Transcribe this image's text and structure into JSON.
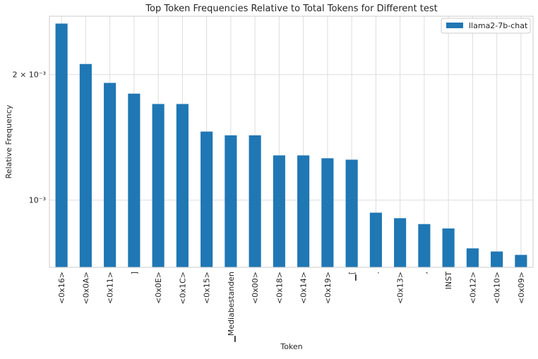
{
  "chart_data": {
    "type": "bar",
    "title": "Top Token Frequencies Relative to Total Tokens for Different test",
    "xlabel": "Token",
    "ylabel": "Relative Frequency",
    "yscale": "log",
    "ylim": [
      0.00069,
      0.00276
    ],
    "grid": true,
    "legend_position": "top-right",
    "y_ticks": [
      {
        "value": 0.002,
        "label": "2 × 10⁻³"
      },
      {
        "value": 0.001,
        "label": "10⁻³"
      }
    ],
    "categories": [
      "<0x16>",
      "<0x0A>",
      "<0x11>",
      "]",
      "<0x0E>",
      "<0x1C>",
      "<0x15>",
      "▁Mediabestanden",
      "<0x00>",
      "<0x18>",
      "<0x14>",
      "<0x19>",
      "▁[",
      ".",
      "<0x13>",
      ",",
      "INST",
      "<0x12>",
      "<0x10>",
      "<0x09>"
    ],
    "series": [
      {
        "name": "llama2-7b-chat",
        "color": "#1f77b4",
        "values": [
          0.00265,
          0.00212,
          0.00191,
          0.0018,
          0.0017,
          0.0017,
          0.00146,
          0.00143,
          0.00143,
          0.00128,
          0.00128,
          0.00126,
          0.00125,
          0.000933,
          0.000905,
          0.000876,
          0.000855,
          0.000766,
          0.000753,
          0.000739
        ]
      }
    ]
  }
}
